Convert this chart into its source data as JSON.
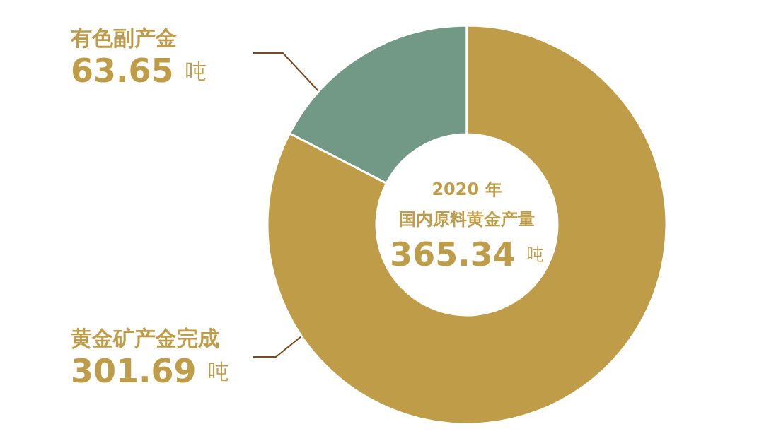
{
  "chart_data": {
    "type": "donut",
    "title": "2020 年",
    "subtitle": "国内原料黄金产量",
    "annotations": [
      "365.34 吨"
    ],
    "categories": [
      "有色副产金",
      "黄金矿产金完成"
    ],
    "values": [
      63.65,
      301.69
    ],
    "colors": [
      "#729985",
      "#bf9c48"
    ],
    "value_labels": [
      "63.65 吨",
      "301.69 吨"
    ],
    "legend": false
  }
}
